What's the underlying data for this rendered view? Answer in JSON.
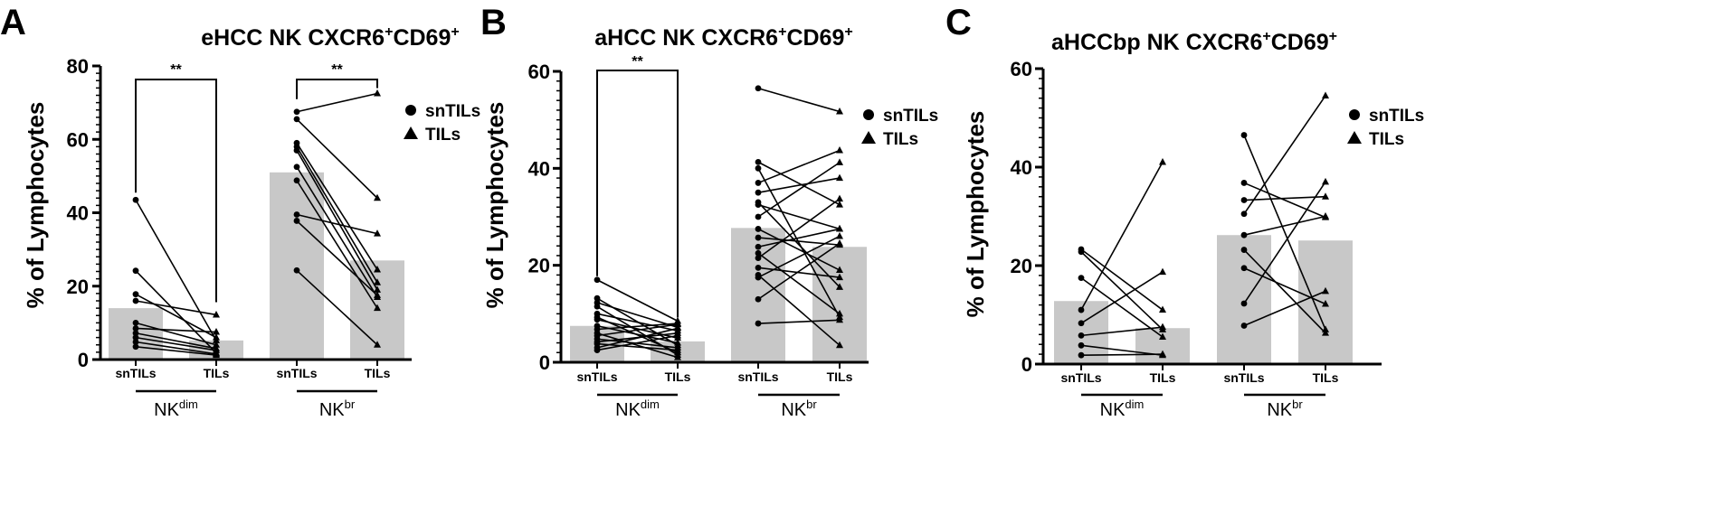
{
  "chart_data": [
    {
      "panel": "A",
      "type": "bar",
      "title": "eHCC NK CXCR6",
      "title_sup": [
        "+",
        "+"
      ],
      "title_mid": "CD69",
      "ylabel": "% of Lymphocytes",
      "ylim": [
        0,
        80
      ],
      "yticks": [
        "0",
        "20",
        "40",
        "60",
        "80"
      ],
      "categories": [
        "snTILs",
        "TILs",
        "snTILs",
        "TILs"
      ],
      "bar_values": [
        14,
        5.2,
        51,
        27
      ],
      "groups": [
        {
          "label": "NK",
          "sup": "dim"
        },
        {
          "label": "NK",
          "sup": "br"
        }
      ],
      "legend": [
        {
          "marker": "circle",
          "label": "snTILs"
        },
        {
          "marker": "triangle",
          "label": "TILs"
        }
      ],
      "significance": [
        "**",
        "**"
      ],
      "pairs_dim": [
        [
          43.5,
          5.2
        ],
        [
          24.2,
          1.8
        ],
        [
          17.8,
          6.0
        ],
        [
          16.0,
          12.2
        ],
        [
          10.0,
          4.0
        ],
        [
          8.5,
          7.5
        ],
        [
          7.2,
          3.0
        ],
        [
          6.0,
          2.5
        ],
        [
          4.8,
          1.5
        ],
        [
          3.5,
          1.2
        ]
      ],
      "pairs_br": [
        [
          67.5,
          72.5
        ],
        [
          65.5,
          44.0
        ],
        [
          59.0,
          24.5
        ],
        [
          58.0,
          21.0
        ],
        [
          57.0,
          19.0
        ],
        [
          52.5,
          17.0
        ],
        [
          48.8,
          14.0
        ],
        [
          39.5,
          34.3
        ],
        [
          37.8,
          17.5
        ],
        [
          24.3,
          4.0
        ]
      ]
    },
    {
      "panel": "B",
      "type": "bar",
      "title": "aHCC NK CXCR6",
      "title_sup": [
        "+",
        "+"
      ],
      "title_mid": "CD69",
      "ylabel": "% of Lymphocytes",
      "ylim": [
        0,
        60
      ],
      "yticks": [
        "0",
        "20",
        "40",
        "60"
      ],
      "categories": [
        "snTILs",
        "TILs",
        "snTILs",
        "TILs"
      ],
      "bar_values": [
        7.5,
        4.3,
        27.7,
        23.8
      ],
      "groups": [
        {
          "label": "NK",
          "sup": "dim"
        },
        {
          "label": "NK",
          "sup": "br"
        }
      ],
      "legend": [
        {
          "marker": "circle",
          "label": "snTILs"
        },
        {
          "marker": "triangle",
          "label": "TILs"
        }
      ],
      "significance": [
        "**"
      ],
      "pairs_dim": [
        [
          17.0,
          8.5
        ],
        [
          13.2,
          3.5
        ],
        [
          12.3,
          7.2
        ],
        [
          11.5,
          1.5
        ],
        [
          10.0,
          6.5
        ],
        [
          9.3,
          2.0
        ],
        [
          8.8,
          5.0
        ],
        [
          7.5,
          4.0
        ],
        [
          6.8,
          8.0
        ],
        [
          6.0,
          1.0
        ],
        [
          5.5,
          7.8
        ],
        [
          4.8,
          3.0
        ],
        [
          4.2,
          6.0
        ],
        [
          3.8,
          2.5
        ],
        [
          3.0,
          7.0
        ],
        [
          2.5,
          5.5
        ]
      ],
      "pairs_br": [
        [
          56.5,
          51.7
        ],
        [
          41.3,
          32.5
        ],
        [
          40.0,
          9.3
        ],
        [
          37.0,
          43.7
        ],
        [
          35.0,
          38.0
        ],
        [
          33.0,
          15.5
        ],
        [
          32.5,
          27.5
        ],
        [
          30.0,
          41.2
        ],
        [
          27.5,
          19.0
        ],
        [
          25.7,
          24.2
        ],
        [
          23.8,
          27.5
        ],
        [
          22.5,
          10.0
        ],
        [
          21.5,
          33.7
        ],
        [
          19.5,
          17.5
        ],
        [
          18.0,
          3.5
        ],
        [
          17.5,
          26.0
        ],
        [
          13.0,
          24.5
        ],
        [
          8.0,
          8.7
        ]
      ]
    },
    {
      "panel": "C",
      "type": "bar",
      "title": "aHCCbp NK CXCR6",
      "title_sup": [
        "+",
        "+"
      ],
      "title_mid": "CD69",
      "ylabel": "% of Lymphocytes",
      "ylim": [
        0,
        60
      ],
      "yticks": [
        "0",
        "20",
        "40",
        "60"
      ],
      "categories": [
        "snTILs",
        "TILs",
        "snTILs",
        "TILs"
      ],
      "bar_values": [
        12.8,
        7.3,
        26.2,
        25.1
      ],
      "groups": [
        {
          "label": "NK",
          "sup": "dim"
        },
        {
          "label": "NK",
          "sup": "br"
        }
      ],
      "legend": [
        {
          "marker": "circle",
          "label": "snTILs"
        },
        {
          "marker": "triangle",
          "label": "TILs"
        }
      ],
      "significance": [],
      "pairs_dim": [
        [
          23.3,
          11.0
        ],
        [
          22.8,
          7.0
        ],
        [
          17.5,
          5.5
        ],
        [
          11.0,
          41.0
        ],
        [
          8.3,
          18.7
        ],
        [
          5.8,
          7.5
        ],
        [
          3.8,
          1.8
        ],
        [
          1.8,
          2.0
        ]
      ],
      "pairs_br": [
        [
          46.5,
          7.0
        ],
        [
          36.8,
          29.8
        ],
        [
          33.3,
          34.0
        ],
        [
          30.5,
          54.5
        ],
        [
          26.2,
          30.0
        ],
        [
          23.2,
          6.3
        ],
        [
          19.5,
          12.2
        ],
        [
          12.3,
          37.0
        ],
        [
          7.8,
          14.8
        ]
      ]
    }
  ]
}
